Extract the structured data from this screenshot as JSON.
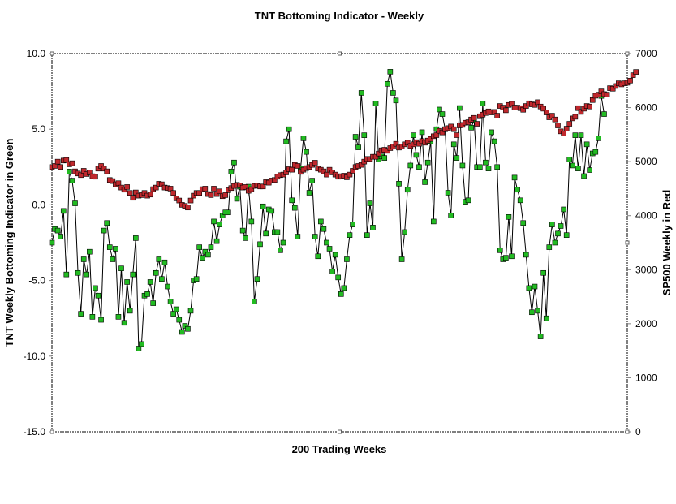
{
  "chart_data": {
    "type": "line",
    "title": "TNT Bottoming Indicator - Weekly",
    "xlabel": "200 Trading Weeks",
    "ylabel": "TNT Weekly Bottoming Indicator in Green",
    "y2label": "SP500 Weekly in Red",
    "ylim": [
      -15,
      10
    ],
    "y2lim": [
      0,
      7000
    ],
    "yticks": [
      "10.0",
      "5.0",
      "0.0",
      "-5.0",
      "-10.0",
      "-15.0"
    ],
    "y2ticks": [
      "7000",
      "6000",
      "5000",
      "4000",
      "3000",
      "2000",
      "1000",
      "0"
    ],
    "grid": false,
    "legend": "none",
    "colors": {
      "indicator": "#22bb22",
      "sp500": "#c0282d",
      "line": "#000000",
      "axis": "#808080"
    },
    "x_count": 200,
    "series": [
      {
        "name": "TNT Weekly Bottoming Indicator in Green",
        "axis": "left",
        "values": [
          -2.5,
          -1.6,
          -1.7,
          -2.1,
          -0.4,
          -4.6,
          2.2,
          1.6,
          0.1,
          -4.5,
          -7.2,
          -3.6,
          -4.6,
          -3.1,
          -7.4,
          -5.5,
          -6.0,
          -7.6,
          -1.7,
          -1.2,
          -2.8,
          -3.6,
          -2.9,
          -7.4,
          -4.2,
          -7.8,
          -5.1,
          -7.0,
          -4.6,
          -2.2,
          -9.5,
          -9.2,
          -6.0,
          -5.9,
          -5.1,
          -6.5,
          -4.5,
          -3.6,
          -4.9,
          -3.8,
          -5.4,
          -6.4,
          -7.2,
          -6.9,
          -7.6,
          -8.4,
          -8.0,
          -8.2,
          -7.0,
          -5.0,
          -4.9,
          -2.8,
          -3.5,
          -3.1,
          -3.3,
          -2.8,
          -1.1,
          -2.4,
          -1.3,
          -0.7,
          -0.5,
          -0.5,
          2.2,
          2.8,
          0.4,
          1.2,
          -1.7,
          -2.2,
          1.2,
          -1.1,
          -6.4,
          -4.9,
          -2.6,
          -0.1,
          -1.9,
          -0.3,
          -0.4,
          -1.8,
          -1.8,
          -3.0,
          -2.5,
          4.2,
          5.0,
          0.3,
          -0.2,
          -2.1,
          2.4,
          4.4,
          3.5,
          0.8,
          1.6,
          -2.1,
          -3.4,
          -1.1,
          -1.6,
          -2.5,
          -2.9,
          -4.4,
          -3.3,
          -4.8,
          -5.9,
          -5.5,
          -3.6,
          -2.0,
          -1.3,
          4.5,
          3.8,
          7.4,
          4.6,
          -2.0,
          0.1,
          -1.5,
          6.7,
          3.0,
          3.2,
          3.1,
          8.0,
          8.8,
          7.4,
          6.9,
          1.4,
          -3.6,
          -1.8,
          1.0,
          2.6,
          4.6,
          3.3,
          2.5,
          4.8,
          1.5,
          2.8,
          4.2,
          -1.1,
          5.0,
          6.3,
          6.0,
          5.0,
          0.8,
          -0.7,
          4.0,
          3.1,
          6.4,
          2.6,
          0.2,
          0.3,
          5.1,
          5.6,
          2.5,
          2.5,
          6.7,
          2.8,
          2.4,
          4.8,
          4.2,
          2.5,
          -3.0,
          -3.6,
          -3.5,
          -0.8,
          -3.4,
          1.8,
          1.0,
          0.3,
          -1.2,
          -3.3,
          -5.5,
          -7.1,
          -5.4,
          -7.0,
          -8.7,
          -4.5,
          -7.5,
          -2.8,
          -1.3,
          -2.5,
          -1.9,
          -1.4,
          -0.3,
          -2.0,
          3.0,
          2.6,
          4.6,
          2.4,
          4.6,
          1.9,
          4.0,
          2.3,
          3.4,
          3.5,
          4.4,
          7.2,
          6.0
        ]
      },
      {
        "name": "SP500 Weekly in Red",
        "axis": "right",
        "values": [
          4900,
          4920,
          5000,
          4900,
          5020,
          5030,
          4950,
          4970,
          4820,
          4780,
          4750,
          4830,
          4770,
          4800,
          4730,
          4720,
          4870,
          4920,
          4870,
          4820,
          4660,
          4640,
          4580,
          4600,
          4520,
          4480,
          4530,
          4420,
          4330,
          4430,
          4370,
          4380,
          4420,
          4370,
          4390,
          4490,
          4520,
          4590,
          4580,
          4520,
          4510,
          4500,
          4420,
          4320,
          4280,
          4200,
          4180,
          4150,
          4280,
          4370,
          4420,
          4420,
          4490,
          4500,
          4400,
          4380,
          4500,
          4400,
          4450,
          4360,
          4380,
          4470,
          4510,
          4550,
          4570,
          4560,
          4520,
          4530,
          4460,
          4490,
          4550,
          4560,
          4540,
          4540,
          4620,
          4610,
          4650,
          4660,
          4720,
          4750,
          4760,
          4800,
          4860,
          4850,
          4940,
          4920,
          4810,
          4850,
          4880,
          4900,
          4940,
          4980,
          4870,
          4850,
          4820,
          4760,
          4850,
          4800,
          4760,
          4720,
          4730,
          4740,
          4710,
          4760,
          4830,
          4900,
          4920,
          4940,
          5000,
          5050,
          5050,
          5090,
          5090,
          5150,
          5210,
          5220,
          5200,
          5250,
          5280,
          5330,
          5260,
          5280,
          5320,
          5350,
          5290,
          5320,
          5360,
          5330,
          5380,
          5350,
          5390,
          5420,
          5470,
          5490,
          5570,
          5540,
          5600,
          5620,
          5650,
          5600,
          5490,
          5670,
          5680,
          5720,
          5730,
          5780,
          5810,
          5700,
          5840,
          5870,
          5900,
          5930,
          5910,
          5920,
          5850,
          6030,
          6000,
          5950,
          6050,
          6070,
          6000,
          6000,
          5990,
          5960,
          6030,
          6080,
          6060,
          6050,
          6100,
          6020,
          5980,
          5910,
          5820,
          5850,
          5780,
          5670,
          5560,
          5520,
          5610,
          5700,
          5800,
          5830,
          5990,
          5920,
          5980,
          6030,
          6020,
          6140,
          6220,
          6240,
          6300,
          6250,
          6240,
          6360,
          6350,
          6400,
          6450,
          6430,
          6450,
          6460,
          6500,
          6600,
          6660
        ]
      }
    ]
  }
}
